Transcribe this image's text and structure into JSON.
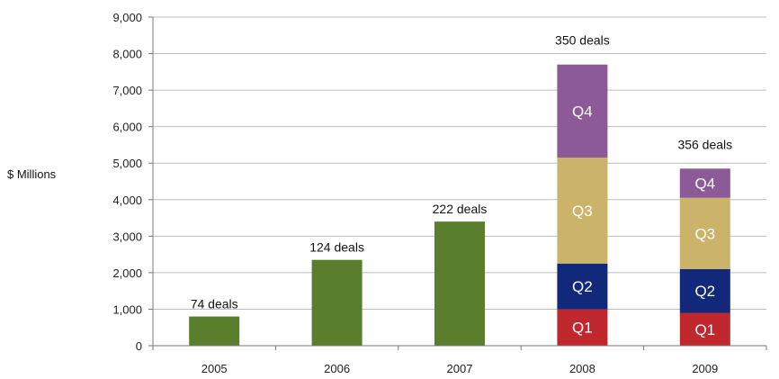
{
  "chart_data": {
    "type": "bar",
    "stacked": true,
    "ylabel": "$ Millions",
    "ylim": [
      0,
      9000
    ],
    "yticks": [
      "0",
      "1,000",
      "2,000",
      "3,000",
      "4,000",
      "5,000",
      "6,000",
      "7,000",
      "8,000",
      "9,000"
    ],
    "grid": true,
    "categories": [
      "2005",
      "2006",
      "2007",
      "2008",
      "2009"
    ],
    "deal_labels": [
      "74 deals",
      "124 deals",
      "222 deals",
      "350 deals",
      "356 deals"
    ],
    "annual_totals": [
      800,
      2350,
      3400,
      null,
      null
    ],
    "quarters": [
      {
        "name": "Q1",
        "color": "#c0282d",
        "values": [
          null,
          null,
          null,
          1000,
          900
        ]
      },
      {
        "name": "Q2",
        "color": "#12287a",
        "values": [
          null,
          null,
          null,
          1250,
          1200
        ]
      },
      {
        "name": "Q3",
        "color": "#cbb36a",
        "values": [
          null,
          null,
          null,
          2900,
          1950
        ]
      },
      {
        "name": "Q4",
        "color": "#8c5a96",
        "values": [
          null,
          null,
          null,
          2550,
          800
        ]
      }
    ],
    "annual_color": "#5a7f2c"
  }
}
